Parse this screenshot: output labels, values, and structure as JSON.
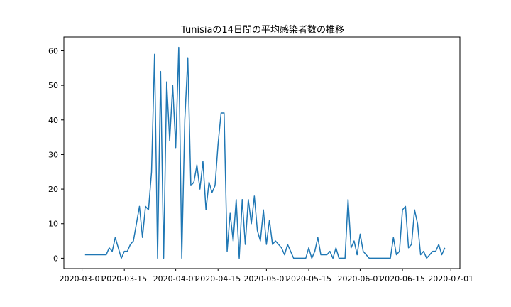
{
  "chart_data": {
    "type": "line",
    "title": "Tunisiaの14日間の平均感染者数の推移",
    "xlabel": "",
    "ylabel": "",
    "x_start": "2020-03-01",
    "x_end": "2020-07-01",
    "xlim": [
      "2020-02-24",
      "2020-07-04"
    ],
    "ylim": [
      -3,
      64
    ],
    "x_ticks": [
      "2020-03-01",
      "2020-03-15",
      "2020-04-01",
      "2020-04-15",
      "2020-05-01",
      "2020-05-15",
      "2020-06-01",
      "2020-06-15",
      "2020-07-01"
    ],
    "y_ticks": [
      0,
      10,
      20,
      30,
      40,
      50,
      60
    ],
    "grid": false,
    "legend": "none",
    "series": [
      {
        "color": "#1f77b4",
        "points": [
          [
            "2020-03-02",
            1
          ],
          [
            "2020-03-03",
            1
          ],
          [
            "2020-03-04",
            1
          ],
          [
            "2020-03-05",
            1
          ],
          [
            "2020-03-06",
            1
          ],
          [
            "2020-03-07",
            1
          ],
          [
            "2020-03-08",
            1
          ],
          [
            "2020-03-09",
            1
          ],
          [
            "2020-03-10",
            3
          ],
          [
            "2020-03-11",
            2
          ],
          [
            "2020-03-12",
            6
          ],
          [
            "2020-03-13",
            3
          ],
          [
            "2020-03-14",
            0
          ],
          [
            "2020-03-15",
            2
          ],
          [
            "2020-03-16",
            2
          ],
          [
            "2020-03-17",
            4
          ],
          [
            "2020-03-18",
            5
          ],
          [
            "2020-03-19",
            10
          ],
          [
            "2020-03-20",
            15
          ],
          [
            "2020-03-21",
            6
          ],
          [
            "2020-03-22",
            15
          ],
          [
            "2020-03-23",
            14
          ],
          [
            "2020-03-24",
            25
          ],
          [
            "2020-03-25",
            59
          ],
          [
            "2020-03-26",
            0
          ],
          [
            "2020-03-27",
            54
          ],
          [
            "2020-03-28",
            0
          ],
          [
            "2020-03-29",
            51
          ],
          [
            "2020-03-30",
            34
          ],
          [
            "2020-03-31",
            50
          ],
          [
            "2020-04-01",
            32
          ],
          [
            "2020-04-02",
            61
          ],
          [
            "2020-04-03",
            0
          ],
          [
            "2020-04-04",
            40
          ],
          [
            "2020-04-05",
            58
          ],
          [
            "2020-04-06",
            21
          ],
          [
            "2020-04-07",
            22
          ],
          [
            "2020-04-08",
            27
          ],
          [
            "2020-04-09",
            20
          ],
          [
            "2020-04-10",
            28
          ],
          [
            "2020-04-11",
            14
          ],
          [
            "2020-04-12",
            22
          ],
          [
            "2020-04-13",
            19
          ],
          [
            "2020-04-14",
            21
          ],
          [
            "2020-04-15",
            33
          ],
          [
            "2020-04-16",
            42
          ],
          [
            "2020-04-17",
            42
          ],
          [
            "2020-04-18",
            2
          ],
          [
            "2020-04-19",
            13
          ],
          [
            "2020-04-20",
            5
          ],
          [
            "2020-04-21",
            17
          ],
          [
            "2020-04-22",
            0
          ],
          [
            "2020-04-23",
            17
          ],
          [
            "2020-04-24",
            4
          ],
          [
            "2020-04-25",
            17
          ],
          [
            "2020-04-26",
            10
          ],
          [
            "2020-04-27",
            18
          ],
          [
            "2020-04-28",
            8
          ],
          [
            "2020-04-29",
            5
          ],
          [
            "2020-04-30",
            14
          ],
          [
            "2020-05-01",
            4
          ],
          [
            "2020-05-02",
            11
          ],
          [
            "2020-05-03",
            4
          ],
          [
            "2020-05-04",
            5
          ],
          [
            "2020-05-05",
            4
          ],
          [
            "2020-05-06",
            3
          ],
          [
            "2020-05-07",
            1
          ],
          [
            "2020-05-08",
            4
          ],
          [
            "2020-05-09",
            2
          ],
          [
            "2020-05-10",
            0
          ],
          [
            "2020-05-11",
            0
          ],
          [
            "2020-05-12",
            0
          ],
          [
            "2020-05-13",
            0
          ],
          [
            "2020-05-14",
            0
          ],
          [
            "2020-05-15",
            3
          ],
          [
            "2020-05-16",
            0
          ],
          [
            "2020-05-17",
            2
          ],
          [
            "2020-05-18",
            6
          ],
          [
            "2020-05-19",
            1
          ],
          [
            "2020-05-20",
            1
          ],
          [
            "2020-05-21",
            1
          ],
          [
            "2020-05-22",
            2
          ],
          [
            "2020-05-23",
            0
          ],
          [
            "2020-05-24",
            3
          ],
          [
            "2020-05-25",
            0
          ],
          [
            "2020-05-26",
            0
          ],
          [
            "2020-05-27",
            0
          ],
          [
            "2020-05-28",
            17
          ],
          [
            "2020-05-29",
            3
          ],
          [
            "2020-05-30",
            5
          ],
          [
            "2020-05-31",
            1
          ],
          [
            "2020-06-01",
            7
          ],
          [
            "2020-06-02",
            2
          ],
          [
            "2020-06-03",
            1
          ],
          [
            "2020-06-04",
            0
          ],
          [
            "2020-06-05",
            0
          ],
          [
            "2020-06-06",
            0
          ],
          [
            "2020-06-07",
            0
          ],
          [
            "2020-06-08",
            0
          ],
          [
            "2020-06-09",
            0
          ],
          [
            "2020-06-10",
            0
          ],
          [
            "2020-06-11",
            0
          ],
          [
            "2020-06-12",
            6
          ],
          [
            "2020-06-13",
            1
          ],
          [
            "2020-06-14",
            2
          ],
          [
            "2020-06-15",
            14
          ],
          [
            "2020-06-16",
            15
          ],
          [
            "2020-06-17",
            3
          ],
          [
            "2020-06-18",
            4
          ],
          [
            "2020-06-19",
            14
          ],
          [
            "2020-06-20",
            10
          ],
          [
            "2020-06-21",
            1
          ],
          [
            "2020-06-22",
            2
          ],
          [
            "2020-06-23",
            0
          ],
          [
            "2020-06-24",
            1
          ],
          [
            "2020-06-25",
            2
          ],
          [
            "2020-06-26",
            2
          ],
          [
            "2020-06-27",
            4
          ],
          [
            "2020-06-28",
            1
          ],
          [
            "2020-06-29",
            3
          ]
        ]
      }
    ]
  }
}
